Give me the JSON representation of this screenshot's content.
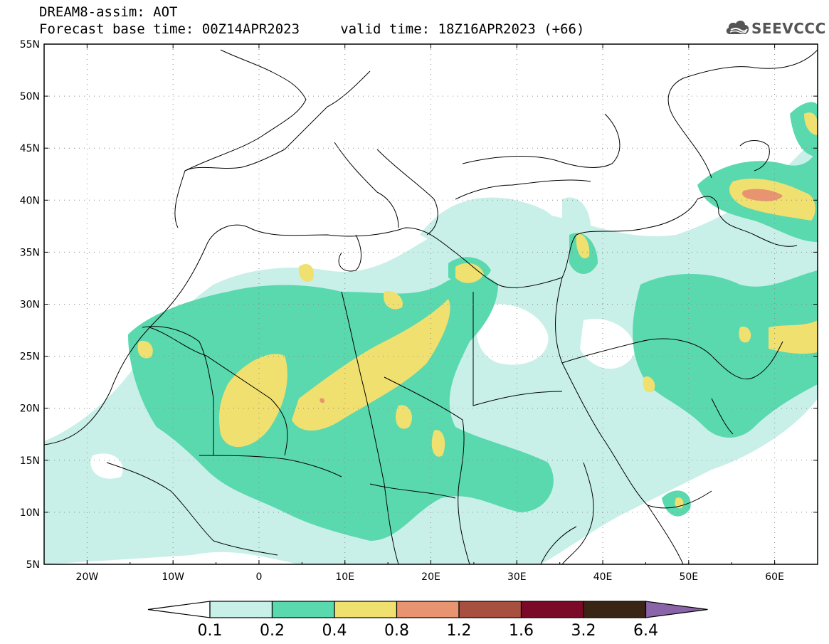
{
  "title": {
    "line1": "DREAM8-assim: AOT",
    "line2": "Forecast base time: 00Z14APR2023     valid time: 18Z16APR2023 (+66)"
  },
  "logo": {
    "text": "SEEVCCC",
    "icon": "cloud-icon",
    "color": "#555555"
  },
  "map": {
    "lon_range": [
      -25,
      65
    ],
    "lat_range": [
      5,
      55
    ],
    "lat_ticks": [
      "5N",
      "10N",
      "15N",
      "20N",
      "25N",
      "30N",
      "35N",
      "40N",
      "45N",
      "50N",
      "55N"
    ],
    "lon_ticks": [
      "20W",
      "10W",
      "0",
      "10E",
      "20E",
      "30E",
      "40E",
      "50E",
      "60E"
    ],
    "grid": true
  },
  "colorbar": {
    "labels": [
      "0.1",
      "0.2",
      "0.4",
      "0.8",
      "1.2",
      "1.6",
      "3.2",
      "6.4"
    ],
    "colors": [
      "#ffffff",
      "#c8f0e8",
      "#5ad8ae",
      "#f0e070",
      "#e89470",
      "#a85040",
      "#7a0a28",
      "#3a2414",
      "#8a64a8"
    ]
  }
}
